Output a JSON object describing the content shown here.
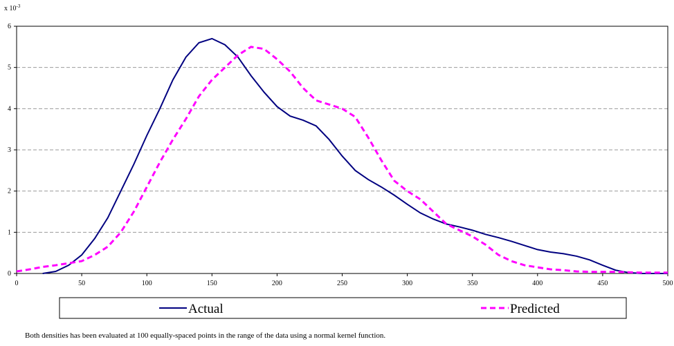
{
  "chart_data": {
    "type": "line",
    "y_multiplier": {
      "base": "x 10",
      "exponent": "-3"
    },
    "x": [
      0,
      10,
      20,
      30,
      40,
      50,
      60,
      70,
      80,
      90,
      100,
      110,
      120,
      130,
      140,
      150,
      160,
      170,
      180,
      190,
      200,
      210,
      220,
      230,
      240,
      250,
      260,
      270,
      280,
      290,
      300,
      310,
      320,
      330,
      340,
      350,
      360,
      370,
      380,
      390,
      400,
      410,
      420,
      430,
      440,
      450,
      460,
      470,
      480,
      490,
      500
    ],
    "series": [
      {
        "name": "Actual",
        "color": "#000080",
        "style": "solid",
        "values": [
          null,
          null,
          0.0,
          0.05,
          0.2,
          0.45,
          0.85,
          1.35,
          2.0,
          2.65,
          3.35,
          4.0,
          4.7,
          5.25,
          5.6,
          5.7,
          5.55,
          5.25,
          4.8,
          4.4,
          4.05,
          3.82,
          3.72,
          3.58,
          3.25,
          2.85,
          2.5,
          2.28,
          2.1,
          1.9,
          1.68,
          1.47,
          1.32,
          1.2,
          1.13,
          1.05,
          0.95,
          0.87,
          0.78,
          0.68,
          0.58,
          0.52,
          0.48,
          0.42,
          0.33,
          0.2,
          0.08,
          0.02,
          0.0,
          0.0,
          0.0
        ]
      },
      {
        "name": "Predicted",
        "color": "#ff00ff",
        "style": "dashed",
        "values": [
          0.05,
          0.1,
          0.16,
          0.2,
          0.25,
          0.3,
          0.45,
          0.65,
          1.0,
          1.5,
          2.1,
          2.7,
          3.25,
          3.75,
          4.3,
          4.7,
          5.0,
          5.3,
          5.5,
          5.45,
          5.2,
          4.9,
          4.5,
          4.2,
          4.1,
          4.0,
          3.8,
          3.3,
          2.75,
          2.25,
          2.0,
          1.8,
          1.5,
          1.2,
          1.05,
          0.9,
          0.7,
          0.45,
          0.3,
          0.2,
          0.15,
          0.1,
          0.08,
          0.05,
          0.04,
          0.04,
          0.04,
          0.03,
          0.02,
          0.02,
          0.02
        ]
      }
    ],
    "xlim": [
      0,
      500
    ],
    "xticks": [
      0,
      50,
      100,
      150,
      200,
      250,
      300,
      350,
      400,
      450,
      500
    ],
    "ylim": [
      0,
      6
    ],
    "yticks": [
      0,
      1,
      2,
      3,
      4,
      5,
      6
    ],
    "grid": true,
    "legend": "bottom",
    "note": "Both densities has been evaluated at 100 equally-spaced points in the range of the data using a normal kernel function."
  }
}
